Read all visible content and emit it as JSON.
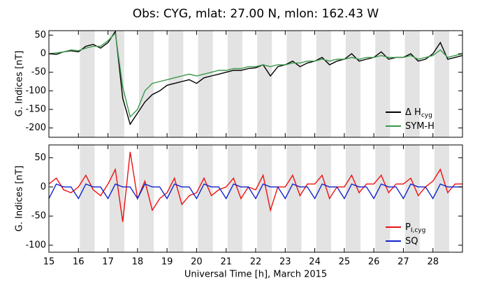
{
  "chart_data": [
    {
      "type": "line",
      "title": "Obs: CYG, mlat:   27.00 N,    mlon:  162.43 W",
      "y_label": "G. Indices [nT]",
      "xlim": [
        15,
        29
      ],
      "ylim": [
        -225,
        62
      ],
      "yticks": [
        50,
        0,
        -50,
        -100,
        -150,
        -200
      ],
      "shaded_intervals": [
        [
          16.05,
          16.55
        ],
        [
          17.05,
          17.55
        ],
        [
          18.05,
          18.55
        ],
        [
          19.05,
          19.55
        ],
        [
          20.05,
          20.55
        ],
        [
          21.05,
          21.55
        ],
        [
          22.05,
          22.55
        ],
        [
          23.05,
          23.55
        ],
        [
          24.05,
          24.55
        ],
        [
          25.05,
          25.55
        ],
        [
          26.05,
          26.55
        ],
        [
          27.05,
          27.55
        ],
        [
          28.05,
          28.55
        ]
      ],
      "legend": "lower right",
      "x": [
        15,
        15.25,
        15.5,
        15.75,
        16,
        16.25,
        16.5,
        16.75,
        17,
        17.25,
        17.5,
        17.75,
        18,
        18.25,
        18.5,
        18.75,
        19,
        19.25,
        19.5,
        19.75,
        20,
        20.25,
        20.5,
        20.75,
        21,
        21.25,
        21.5,
        21.75,
        22,
        22.25,
        22.5,
        22.75,
        23,
        23.25,
        23.5,
        23.75,
        24,
        24.25,
        24.5,
        24.75,
        25,
        25.25,
        25.5,
        25.75,
        26,
        26.25,
        26.5,
        26.75,
        27,
        27.25,
        27.5,
        27.75,
        28,
        28.25,
        28.5,
        28.75,
        29
      ],
      "series": [
        {
          "name": "Δ H",
          "name_subscript": "cyg",
          "color": "#000000",
          "values": [
            0,
            -2,
            5,
            8,
            5,
            20,
            25,
            15,
            30,
            60,
            -120,
            -190,
            -160,
            -130,
            -110,
            -100,
            -85,
            -80,
            -75,
            -70,
            -80,
            -65,
            -60,
            -55,
            -50,
            -45,
            -45,
            -40,
            -38,
            -30,
            -60,
            -35,
            -30,
            -20,
            -35,
            -25,
            -20,
            -10,
            -30,
            -20,
            -15,
            0,
            -20,
            -15,
            -10,
            5,
            -15,
            -10,
            -10,
            0,
            -20,
            -15,
            0,
            30,
            -15,
            -10,
            -5
          ]
        },
        {
          "name": "SYM-H",
          "color": "#3a9a4a",
          "values": [
            0,
            2,
            5,
            10,
            8,
            15,
            20,
            20,
            35,
            55,
            -90,
            -170,
            -150,
            -100,
            -80,
            -75,
            -70,
            -65,
            -60,
            -55,
            -60,
            -55,
            -50,
            -45,
            -45,
            -40,
            -40,
            -35,
            -35,
            -30,
            -35,
            -30,
            -30,
            -25,
            -25,
            -20,
            -20,
            -15,
            -20,
            -15,
            -15,
            -10,
            -15,
            -10,
            -10,
            -5,
            -10,
            -10,
            -10,
            -5,
            -15,
            -10,
            -5,
            10,
            -10,
            -5,
            0
          ]
        }
      ]
    },
    {
      "type": "line",
      "y_label": "G. Indices [nT]",
      "x_label": "Universal Time [h], March 2015",
      "xlim": [
        15,
        29
      ],
      "ylim": [
        -112,
        72
      ],
      "yticks": [
        50,
        0,
        -50,
        -100
      ],
      "xticks": [
        15,
        16,
        17,
        18,
        19,
        20,
        21,
        22,
        23,
        24,
        25,
        26,
        27,
        28
      ],
      "shaded_intervals": [
        [
          16.05,
          16.55
        ],
        [
          17.05,
          17.55
        ],
        [
          18.05,
          18.55
        ],
        [
          19.05,
          19.55
        ],
        [
          20.05,
          20.55
        ],
        [
          21.05,
          21.55
        ],
        [
          22.05,
          22.55
        ],
        [
          23.05,
          23.55
        ],
        [
          24.05,
          24.55
        ],
        [
          25.05,
          25.55
        ],
        [
          26.05,
          26.55
        ],
        [
          27.05,
          27.55
        ],
        [
          28.05,
          28.55
        ]
      ],
      "legend": "lower right",
      "x": [
        15,
        15.25,
        15.5,
        15.75,
        16,
        16.25,
        16.5,
        16.75,
        17,
        17.25,
        17.5,
        17.75,
        18,
        18.25,
        18.5,
        18.75,
        19,
        19.25,
        19.5,
        19.75,
        20,
        20.25,
        20.5,
        20.75,
        21,
        21.25,
        21.5,
        21.75,
        22,
        22.25,
        22.5,
        22.75,
        23,
        23.25,
        23.5,
        23.75,
        24,
        24.25,
        24.5,
        24.75,
        25,
        25.25,
        25.5,
        25.75,
        26,
        26.25,
        26.5,
        26.75,
        27,
        27.25,
        27.5,
        27.75,
        28,
        28.25,
        28.5,
        28.75,
        29
      ],
      "series": [
        {
          "name": "P",
          "name_subscript": "I,cyg",
          "color": "#ee1111",
          "values": [
            5,
            15,
            -5,
            -10,
            0,
            20,
            -5,
            -15,
            5,
            30,
            -60,
            60,
            -20,
            10,
            -40,
            -20,
            -10,
            15,
            -30,
            -15,
            -10,
            15,
            -15,
            -5,
            0,
            15,
            -20,
            0,
            -5,
            20,
            -40,
            0,
            0,
            20,
            -15,
            5,
            5,
            20,
            -20,
            0,
            0,
            20,
            -10,
            5,
            5,
            20,
            -10,
            5,
            5,
            15,
            -15,
            0,
            10,
            30,
            -10,
            5,
            5
          ]
        },
        {
          "name": "SQ",
          "color": "#1122cc",
          "values": [
            -20,
            5,
            0,
            0,
            -20,
            5,
            0,
            0,
            -20,
            5,
            0,
            0,
            -20,
            5,
            0,
            0,
            -20,
            5,
            0,
            0,
            -20,
            5,
            0,
            0,
            -20,
            5,
            0,
            0,
            -20,
            5,
            0,
            0,
            -20,
            5,
            0,
            0,
            -20,
            5,
            0,
            0,
            -20,
            5,
            0,
            0,
            -20,
            5,
            0,
            0,
            -20,
            5,
            0,
            0,
            -20,
            5,
            0,
            0,
            0
          ]
        }
      ]
    }
  ]
}
